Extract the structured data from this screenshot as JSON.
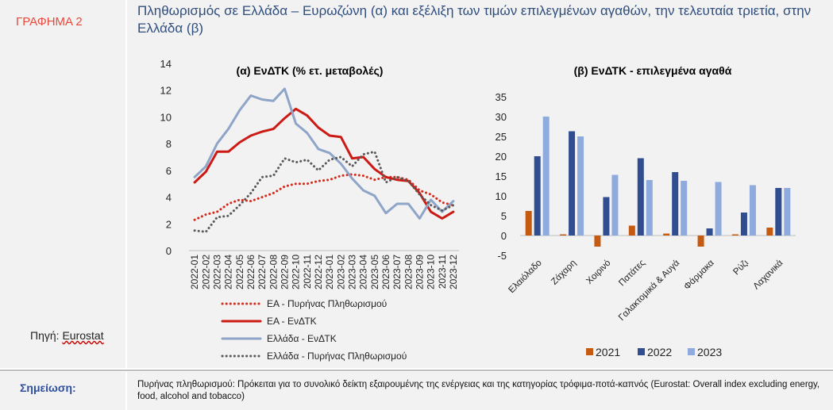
{
  "figure_label": "ΓΡΑΦΗΜΑ 2",
  "title": "Πληθωρισμός σε Ελλάδα – Ευρωζώνη (α) και εξέλιξη των τιμών επιλεγμένων αγαθών, την τελευταία τριετία, στην Ελλάδα (β)",
  "source_label": "Πηγή:",
  "source_value": "Eurostat",
  "note_label": "Σημείωση:",
  "note_text": "Πυρήνας πληθωρισμού: Πρόκειται για το συνολικό δείκτη εξαιρουμένης της ενέργειας και της κατηγορίας τρόφιμα-ποτά-καπνός (Eurostat: Overall index excluding energy, food, alcohol and tobacco)",
  "colors": {
    "ea_core": "#d42a1a",
    "ea_hicp": "#cc1a14",
    "gr_hicp": "#8ea4c8",
    "gr_core": "#595959",
    "y2021": "#c55a11",
    "y2022": "#2f4d8f",
    "y2023": "#8faadc"
  },
  "chart_data": [
    {
      "type": "line",
      "title": "(α) ΕνΔΤΚ (% ετ. μεταβολές)",
      "categories": [
        "2022-01",
        "2022-02",
        "2022-03",
        "2022-04",
        "2022-05",
        "2022-06",
        "2022-07",
        "2022-08",
        "2022-09",
        "2022-10",
        "2022-11",
        "2022-12",
        "2023-01",
        "2023-02",
        "2023-03",
        "2023-04",
        "2023-05",
        "2023-06",
        "2023-07",
        "2023-08",
        "2023-09",
        "2023-10",
        "2023-11",
        "2023-12"
      ],
      "ylim": [
        0,
        14
      ],
      "yticks": [
        "0",
        "2",
        "4",
        "6",
        "8",
        "10",
        "12",
        "14"
      ],
      "legend_position": "bottom",
      "series": [
        {
          "name": "ΕΑ - Πυρήνας Πληθωρισμού",
          "style": "dotted",
          "color": "#d42a1a",
          "values": [
            2.3,
            2.7,
            2.9,
            3.5,
            3.8,
            3.7,
            4.0,
            4.3,
            4.8,
            5.0,
            5.0,
            5.2,
            5.3,
            5.6,
            5.7,
            5.6,
            5.3,
            5.5,
            5.5,
            5.3,
            4.5,
            4.2,
            3.6,
            3.4
          ]
        },
        {
          "name": "ΕΑ - ΕνΔΤΚ",
          "style": "solid",
          "color": "#cc1a14",
          "values": [
            5.1,
            5.9,
            7.4,
            7.4,
            8.1,
            8.6,
            8.9,
            9.1,
            9.9,
            10.6,
            10.1,
            9.2,
            8.6,
            8.5,
            6.9,
            7.0,
            6.1,
            5.5,
            5.3,
            5.2,
            4.3,
            2.9,
            2.4,
            2.9
          ]
        },
        {
          "name": "Ελλάδα - ΕνΔΤΚ",
          "style": "solid",
          "color": "#8ea4c8",
          "values": [
            5.5,
            6.3,
            8.0,
            9.1,
            10.5,
            11.6,
            11.3,
            11.2,
            12.1,
            9.5,
            8.8,
            7.6,
            7.3,
            6.5,
            5.4,
            4.5,
            4.1,
            2.8,
            3.5,
            3.5,
            2.4,
            3.8,
            2.9,
            3.7
          ]
        },
        {
          "name": "Ελλάδα - Πυρήνας Πληθωρισμού",
          "style": "dotted",
          "color": "#595959",
          "values": [
            1.5,
            1.4,
            2.5,
            2.6,
            3.4,
            4.3,
            5.5,
            5.6,
            6.9,
            6.6,
            6.8,
            6.0,
            6.8,
            7.0,
            6.3,
            7.2,
            7.4,
            5.1,
            5.5,
            5.2,
            4.2,
            3.4,
            3.0,
            3.4
          ]
        }
      ]
    },
    {
      "type": "bar",
      "title": "(β) ΕνΔΤΚ - επιλεγμένα αγαθά",
      "categories": [
        "Ελαιόλαδο",
        "Ζάχαρη",
        "Χοιρινό",
        "Πατάτες",
        "Γαλακτομικά & Αυγά",
        "Φάρμακα",
        "Ρύζι",
        "Λαχανικά"
      ],
      "ylim": [
        -5,
        35
      ],
      "yticks": [
        "-5",
        "0",
        "5",
        "10",
        "15",
        "20",
        "25",
        "30",
        "35"
      ],
      "legend_position": "bottom",
      "series": [
        {
          "name": "2021",
          "color": "#c55a11",
          "values": [
            6.2,
            0.3,
            -2.8,
            2.5,
            0.5,
            -2.8,
            0.3,
            2.0
          ]
        },
        {
          "name": "2022",
          "color": "#2f4d8f",
          "values": [
            20.0,
            26.3,
            9.7,
            19.5,
            16.0,
            1.8,
            5.8,
            12.0
          ]
        },
        {
          "name": "2023",
          "color": "#8faadc",
          "values": [
            30.0,
            25.0,
            15.3,
            14.0,
            13.8,
            13.5,
            12.7,
            12.0
          ]
        }
      ]
    }
  ]
}
